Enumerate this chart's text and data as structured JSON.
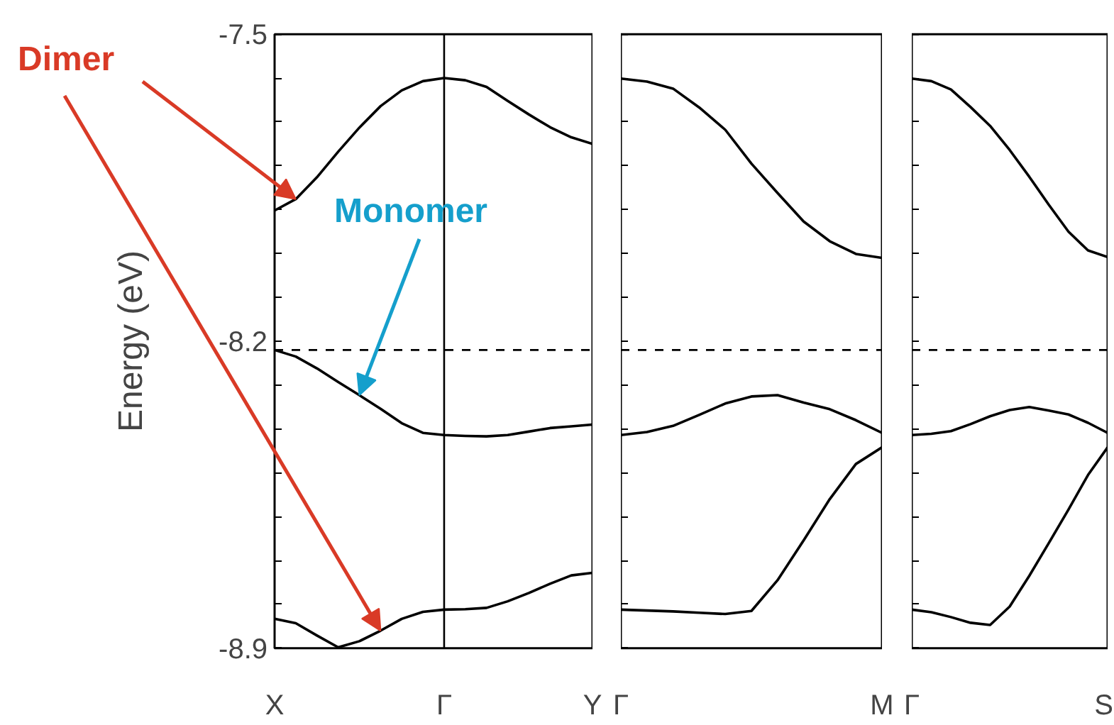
{
  "chart_data": [
    {
      "type": "line",
      "ylabel": "Energy (eV)",
      "ylim": [
        -8.9,
        -7.5
      ],
      "grid": false,
      "line_style": "solid",
      "marker": "none",
      "categories": [
        "X",
        null,
        null,
        null,
        null,
        null,
        null,
        null,
        "Γ",
        null,
        null,
        null,
        null,
        null,
        null,
        "Y"
      ],
      "yticks": [
        -7.5,
        {
          "value": -7.6,
          "label": null
        },
        {
          "value": -7.7,
          "label": null
        },
        {
          "value": -7.8,
          "label": null
        },
        {
          "value": -7.9,
          "label": null
        },
        {
          "value": -8.0,
          "label": null
        },
        {
          "value": -8.1,
          "label": null
        },
        -8.2,
        {
          "value": -8.3,
          "label": null
        },
        {
          "value": -8.4,
          "label": null
        },
        {
          "value": -8.5,
          "label": null
        },
        {
          "value": -8.6,
          "label": null
        },
        {
          "value": -8.7,
          "label": null
        },
        {
          "value": -8.8,
          "label": null
        },
        -8.9
      ],
      "ref_lines": [
        {
          "axis": "y",
          "value": -8.22,
          "color": "#000000",
          "line_style": "dashed"
        },
        {
          "axis": "x",
          "value": "Γ",
          "color": "#000000",
          "line_style": "solid"
        }
      ],
      "annotations": [
        "Dimer",
        "Monomer"
      ],
      "series": [
        {
          "color": "#000000",
          "values": [
            -7.902,
            -7.876,
            -7.826,
            -7.768,
            -7.713,
            -7.664,
            -7.628,
            -7.607,
            -7.6,
            -7.605,
            -7.62,
            -7.652,
            -7.683,
            -7.712,
            -7.735,
            -7.75
          ]
        },
        {
          "color": "#000000",
          "values": [
            -8.22,
            -8.235,
            -8.262,
            -8.293,
            -8.323,
            -8.354,
            -8.387,
            -8.409,
            -8.414,
            -8.416,
            -8.417,
            -8.414,
            -8.406,
            -8.398,
            -8.394,
            -8.39
          ]
        },
        {
          "color": "#000000",
          "values": [
            -8.833,
            -8.843,
            -8.871,
            -8.898,
            -8.884,
            -8.86,
            -8.833,
            -8.817,
            -8.812,
            -8.811,
            -8.808,
            -8.793,
            -8.774,
            -8.753,
            -8.734,
            -8.728
          ]
        }
      ]
    },
    {
      "type": "line",
      "ylim": [
        -8.9,
        -7.5
      ],
      "grid": false,
      "tick_labels": "x",
      "line_style": "solid",
      "marker": "none",
      "categories": [
        "Γ",
        null,
        null,
        null,
        null,
        null,
        null,
        null,
        null,
        null,
        "M"
      ],
      "yticks": [
        {
          "value": -7.5,
          "label": null
        },
        {
          "value": -7.6,
          "label": null
        },
        {
          "value": -7.7,
          "label": null
        },
        {
          "value": -7.8,
          "label": null
        },
        {
          "value": -7.9,
          "label": null
        },
        {
          "value": -8.0,
          "label": null
        },
        {
          "value": -8.1,
          "label": null
        },
        {
          "value": -8.2,
          "label": null
        },
        {
          "value": -8.3,
          "label": null
        },
        {
          "value": -8.4,
          "label": null
        },
        {
          "value": -8.5,
          "label": null
        },
        {
          "value": -8.6,
          "label": null
        },
        {
          "value": -8.7,
          "label": null
        },
        {
          "value": -8.8,
          "label": null
        },
        {
          "value": -8.9,
          "label": null
        }
      ],
      "ref_lines": [
        {
          "axis": "y",
          "value": -8.22,
          "color": "#000000",
          "line_style": "dashed"
        }
      ],
      "series": [
        {
          "color": "#000000",
          "values": [
            -7.601,
            -7.608,
            -7.624,
            -7.667,
            -7.718,
            -7.795,
            -7.862,
            -7.927,
            -7.972,
            -8.001,
            -8.01
          ]
        },
        {
          "color": "#000000",
          "values": [
            -8.414,
            -8.407,
            -8.393,
            -8.368,
            -8.342,
            -8.326,
            -8.323,
            -8.34,
            -8.355,
            -8.38,
            -8.409
          ]
        },
        {
          "color": "#000000",
          "values": [
            -8.812,
            -8.814,
            -8.816,
            -8.819,
            -8.822,
            -8.815,
            -8.745,
            -8.654,
            -8.56,
            -8.48,
            -8.442
          ]
        }
      ]
    },
    {
      "type": "line",
      "ylim": [
        -8.9,
        -7.5
      ],
      "grid": false,
      "tick_labels": "x",
      "line_style": "solid",
      "marker": "none",
      "categories": [
        "Γ",
        null,
        null,
        null,
        null,
        null,
        null,
        null,
        null,
        null,
        "S"
      ],
      "yticks": [
        {
          "value": -7.5,
          "label": null
        },
        {
          "value": -7.6,
          "label": null
        },
        {
          "value": -7.7,
          "label": null
        },
        {
          "value": -7.8,
          "label": null
        },
        {
          "value": -7.9,
          "label": null
        },
        {
          "value": -8.0,
          "label": null
        },
        {
          "value": -8.1,
          "label": null
        },
        {
          "value": -8.2,
          "label": null
        },
        {
          "value": -8.3,
          "label": null
        },
        {
          "value": -8.4,
          "label": null
        },
        {
          "value": -8.5,
          "label": null
        },
        {
          "value": -8.6,
          "label": null
        },
        {
          "value": -8.7,
          "label": null
        },
        {
          "value": -8.8,
          "label": null
        },
        {
          "value": -8.9,
          "label": null
        }
      ],
      "ref_lines": [
        {
          "axis": "y",
          "value": -8.22,
          "color": "#000000",
          "line_style": "dashed"
        }
      ],
      "series": [
        {
          "color": "#000000",
          "values": [
            -7.601,
            -7.607,
            -7.626,
            -7.666,
            -7.709,
            -7.764,
            -7.825,
            -7.889,
            -7.95,
            -7.993,
            -8.008
          ]
        },
        {
          "color": "#000000",
          "values": [
            -8.414,
            -8.411,
            -8.405,
            -8.389,
            -8.371,
            -8.357,
            -8.35,
            -8.358,
            -8.367,
            -8.386,
            -8.409
          ]
        },
        {
          "color": "#000000",
          "values": [
            -8.812,
            -8.818,
            -8.829,
            -8.842,
            -8.847,
            -8.805,
            -8.735,
            -8.66,
            -8.584,
            -8.505,
            -8.442
          ]
        }
      ]
    }
  ]
}
